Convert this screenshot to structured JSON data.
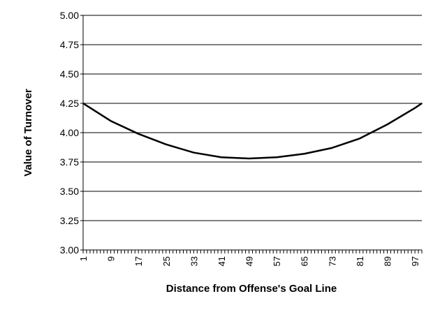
{
  "chart_data": {
    "type": "line",
    "title": "",
    "xlabel": "Distance from Offense's Goal Line",
    "ylabel": "Value of Turnover",
    "ylim": [
      3.0,
      5.0
    ],
    "xlim": [
      1,
      99
    ],
    "yticks": [
      "3.00",
      "3.25",
      "3.50",
      "3.75",
      "4.00",
      "4.25",
      "4.50",
      "4.75",
      "5.00"
    ],
    "xticks": [
      "1",
      "9",
      "17",
      "25",
      "33",
      "41",
      "49",
      "57",
      "65",
      "73",
      "81",
      "89",
      "97"
    ],
    "grid": "horizontal",
    "legend": "none",
    "series": [
      {
        "color": "#000000",
        "x": [
          1,
          9,
          17,
          25,
          33,
          41,
          49,
          57,
          65,
          73,
          81,
          89,
          97,
          99
        ],
        "y": [
          4.25,
          4.1,
          3.99,
          3.9,
          3.83,
          3.79,
          3.78,
          3.79,
          3.82,
          3.87,
          3.95,
          4.07,
          4.21,
          4.25
        ]
      }
    ]
  }
}
